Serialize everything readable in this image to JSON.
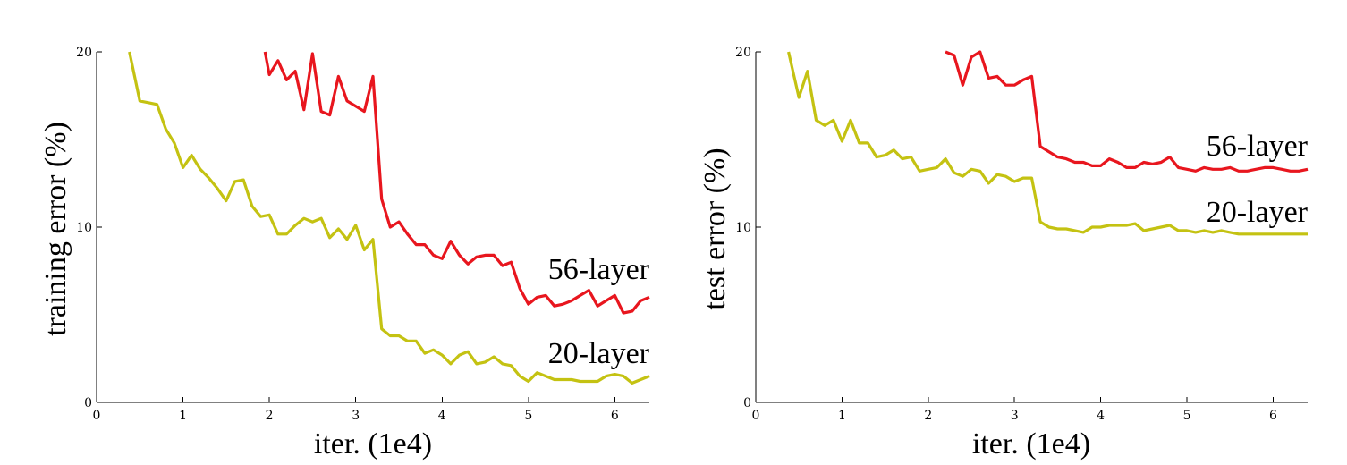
{
  "chart_data": [
    {
      "type": "line",
      "title": "",
      "xlabel": "iter. (1e4)",
      "ylabel": "training error (%)",
      "xlim": [
        0,
        6.4
      ],
      "ylim": [
        0,
        20
      ],
      "xticks": [
        "0",
        "1",
        "2",
        "3",
        "4",
        "5",
        "6"
      ],
      "yticks": [
        "0",
        "10",
        "20"
      ],
      "grid": false,
      "series": [
        {
          "name": "56-layer",
          "color": "#e8161e",
          "x": [
            1.95,
            2.0,
            2.1,
            2.2,
            2.3,
            2.4,
            2.5,
            2.6,
            2.7,
            2.8,
            2.9,
            3.0,
            3.1,
            3.2,
            3.3,
            3.4,
            3.5,
            3.6,
            3.7,
            3.8,
            3.9,
            4.0,
            4.1,
            4.2,
            4.3,
            4.4,
            4.5,
            4.6,
            4.7,
            4.8,
            4.9,
            5.0,
            5.1,
            5.2,
            5.3,
            5.4,
            5.5,
            5.6,
            5.7,
            5.8,
            5.9,
            6.0,
            6.1,
            6.2,
            6.3,
            6.4
          ],
          "y": [
            20.0,
            18.7,
            19.5,
            18.4,
            18.9,
            16.7,
            19.9,
            16.6,
            16.4,
            18.6,
            17.2,
            16.9,
            16.6,
            18.6,
            11.6,
            10.0,
            10.3,
            9.6,
            9.0,
            9.0,
            8.4,
            8.2,
            9.2,
            8.4,
            7.9,
            8.3,
            8.4,
            8.4,
            7.8,
            8.0,
            6.5,
            5.6,
            6.0,
            6.1,
            5.5,
            5.6,
            5.8,
            6.1,
            6.4,
            5.5,
            5.8,
            6.1,
            5.1,
            5.2,
            5.8,
            6.0
          ]
        },
        {
          "name": "20-layer",
          "color": "#c4c212",
          "x": [
            0.38,
            0.5,
            0.6,
            0.7,
            0.8,
            0.9,
            1.0,
            1.1,
            1.2,
            1.3,
            1.4,
            1.5,
            1.6,
            1.7,
            1.8,
            1.9,
            2.0,
            2.1,
            2.2,
            2.3,
            2.4,
            2.5,
            2.6,
            2.7,
            2.8,
            2.9,
            3.0,
            3.1,
            3.2,
            3.3,
            3.4,
            3.5,
            3.6,
            3.7,
            3.8,
            3.9,
            4.0,
            4.1,
            4.2,
            4.3,
            4.4,
            4.5,
            4.6,
            4.7,
            4.8,
            4.9,
            5.0,
            5.1,
            5.2,
            5.3,
            5.4,
            5.5,
            5.6,
            5.7,
            5.8,
            5.9,
            6.0,
            6.1,
            6.2,
            6.3,
            6.4
          ],
          "y": [
            20.0,
            17.2,
            17.1,
            17.0,
            15.6,
            14.8,
            13.4,
            14.1,
            13.3,
            12.8,
            12.2,
            11.5,
            12.6,
            12.7,
            11.2,
            10.6,
            10.7,
            9.6,
            9.6,
            10.1,
            10.5,
            10.3,
            10.5,
            9.4,
            9.9,
            9.3,
            10.1,
            8.7,
            9.3,
            4.2,
            3.8,
            3.8,
            3.5,
            3.5,
            2.8,
            3.0,
            2.7,
            2.2,
            2.7,
            2.9,
            2.2,
            2.3,
            2.6,
            2.2,
            2.1,
            1.5,
            1.2,
            1.7,
            1.5,
            1.3,
            1.3,
            1.3,
            1.2,
            1.2,
            1.2,
            1.5,
            1.6,
            1.5,
            1.1,
            1.3,
            1.5
          ]
        }
      ],
      "annotations": [
        "56-layer",
        "20-layer"
      ]
    },
    {
      "type": "line",
      "title": "",
      "xlabel": "iter. (1e4)",
      "ylabel": "test error (%)",
      "xlim": [
        0,
        6.4
      ],
      "ylim": [
        0,
        20
      ],
      "xticks": [
        "0",
        "1",
        "2",
        "3",
        "4",
        "5",
        "6"
      ],
      "yticks": [
        "0",
        "10",
        "20"
      ],
      "grid": false,
      "series": [
        {
          "name": "56-layer",
          "color": "#e8161e",
          "x": [
            2.2,
            2.3,
            2.4,
            2.5,
            2.6,
            2.7,
            2.8,
            2.9,
            3.0,
            3.1,
            3.2,
            3.3,
            3.4,
            3.5,
            3.6,
            3.7,
            3.8,
            3.9,
            4.0,
            4.1,
            4.2,
            4.3,
            4.4,
            4.5,
            4.6,
            4.7,
            4.8,
            4.9,
            5.0,
            5.1,
            5.2,
            5.3,
            5.4,
            5.5,
            5.6,
            5.7,
            5.8,
            5.9,
            6.0,
            6.1,
            6.2,
            6.3,
            6.4
          ],
          "y": [
            20.0,
            19.8,
            18.1,
            19.7,
            20.0,
            18.5,
            18.6,
            18.1,
            18.1,
            18.4,
            18.6,
            14.6,
            14.3,
            14.0,
            13.9,
            13.7,
            13.7,
            13.5,
            13.5,
            13.9,
            13.7,
            13.4,
            13.4,
            13.7,
            13.6,
            13.7,
            14.0,
            13.4,
            13.3,
            13.2,
            13.4,
            13.3,
            13.3,
            13.4,
            13.2,
            13.2,
            13.3,
            13.4,
            13.4,
            13.3,
            13.2,
            13.2,
            13.3
          ]
        },
        {
          "name": "20-layer",
          "color": "#c4c212",
          "x": [
            0.38,
            0.5,
            0.6,
            0.7,
            0.8,
            0.9,
            1.0,
            1.1,
            1.2,
            1.3,
            1.4,
            1.5,
            1.6,
            1.7,
            1.8,
            1.9,
            2.0,
            2.1,
            2.2,
            2.3,
            2.4,
            2.5,
            2.6,
            2.7,
            2.8,
            2.9,
            3.0,
            3.1,
            3.2,
            3.3,
            3.4,
            3.5,
            3.6,
            3.7,
            3.8,
            3.9,
            4.0,
            4.1,
            4.2,
            4.3,
            4.4,
            4.5,
            4.6,
            4.7,
            4.8,
            4.9,
            5.0,
            5.1,
            5.2,
            5.3,
            5.4,
            5.5,
            5.6,
            5.7,
            5.8,
            5.9,
            6.0,
            6.1,
            6.2,
            6.3,
            6.4
          ],
          "y": [
            20.0,
            17.4,
            18.9,
            16.1,
            15.8,
            16.1,
            14.9,
            16.1,
            14.8,
            14.8,
            14.0,
            14.1,
            14.4,
            13.9,
            14.0,
            13.2,
            13.3,
            13.4,
            13.9,
            13.1,
            12.9,
            13.3,
            13.2,
            12.5,
            13.0,
            12.9,
            12.6,
            12.8,
            12.8,
            10.3,
            10.0,
            9.9,
            9.9,
            9.8,
            9.7,
            10.0,
            10.0,
            10.1,
            10.1,
            10.1,
            10.2,
            9.8,
            9.9,
            10.0,
            10.1,
            9.8,
            9.8,
            9.7,
            9.8,
            9.7,
            9.8,
            9.7,
            9.6,
            9.6,
            9.6,
            9.6,
            9.6,
            9.6,
            9.6,
            9.6,
            9.6
          ]
        }
      ],
      "annotations": [
        "56-layer",
        "20-layer"
      ]
    }
  ]
}
